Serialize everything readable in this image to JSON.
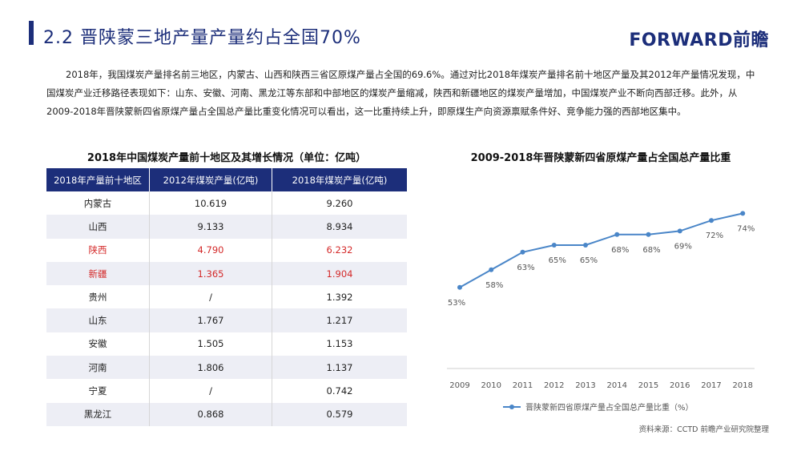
{
  "header": {
    "title": "2.2  晋陕蒙三地产量产量约占全国70%",
    "brand": "FORWARD前瞻"
  },
  "intro": "2018年，我国煤炭产量排名前三地区，内蒙古、山西和陕西三省区原煤产量占全国的69.6%。通过对比2018年煤炭产量排名前十地区产量及其2012年产量情况发现，中国煤炭产业迁移路径表现如下：山东、安徽、河南、黑龙江等东部和中部地区的煤炭产量缩减，陕西和新疆地区的煤炭产量增加，中国煤炭产业不断向西部迁移。此外，从2009-2018年晋陕蒙新四省原煤产量占全国总产量比重变化情况可以看出，这一比重持续上升，即原煤生产向资源禀赋条件好、竞争能力强的西部地区集中。",
  "table": {
    "title": "2018年中国煤炭产量前十地区及其增长情况（单位：亿吨）",
    "headers": [
      "2018年产量前十地区",
      "2012年煤炭产量(亿吨)",
      "2018年煤炭产量(亿吨)"
    ],
    "rows": [
      {
        "region": "内蒙古",
        "y2012": "10.619",
        "y2018": "9.260"
      },
      {
        "region": "山西",
        "y2012": "9.133",
        "y2018": "8.934"
      },
      {
        "region": "陕西",
        "y2012": "4.790",
        "y2018": "6.232"
      },
      {
        "region": "新疆",
        "y2012": "1.365",
        "y2018": "1.904"
      },
      {
        "region": "贵州",
        "y2012": "/",
        "y2018": "1.392"
      },
      {
        "region": "山东",
        "y2012": "1.767",
        "y2018": "1.217"
      },
      {
        "region": "安徽",
        "y2012": "1.505",
        "y2018": "1.153"
      },
      {
        "region": "河南",
        "y2012": "1.806",
        "y2018": "1.137"
      },
      {
        "region": "宁夏",
        "y2012": "/",
        "y2018": "0.742"
      },
      {
        "region": "黑龙江",
        "y2012": "0.868",
        "y2018": "0.579"
      }
    ],
    "highlight_color": "#d42a2a",
    "header_color": "#1c2e7a"
  },
  "chart_data": {
    "type": "line",
    "title": "2009-2018年晋陕蒙新四省原煤产量占全国总产量比重",
    "x": [
      "2009",
      "2010",
      "2011",
      "2012",
      "2013",
      "2014",
      "2015",
      "2016",
      "2017",
      "2018"
    ],
    "series": [
      {
        "name": "晋陕蒙新四省原煤产量占全国总产量比重（%）",
        "values": [
          53,
          58,
          63,
          65,
          65,
          68,
          68,
          69,
          72,
          74
        ],
        "color": "#4a86c8"
      }
    ],
    "data_labels": [
      "53%",
      "58%",
      "63%",
      "65%",
      "65%",
      "68%",
      "68%",
      "69%",
      "72%",
      "74%"
    ],
    "ylim": [
      30,
      80
    ],
    "grid": false,
    "legend": "bottom"
  },
  "footer": {
    "source": "资料来源：CCTD 前瞻产业研究院整理"
  }
}
